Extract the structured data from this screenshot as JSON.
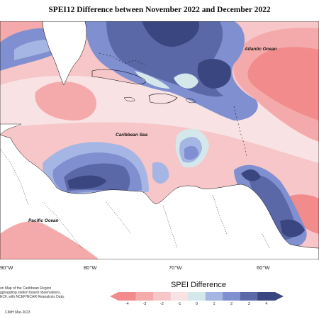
{
  "title": "SPEI12 Difference between November 2022 and December 2022",
  "labels": {
    "atlantic": "Atlantic Ocean",
    "caribbean": "Caribbean Sea",
    "pacific": "Pacific Ocean"
  },
  "longitudes": [
    "90°W",
    "80°W",
    "70°W",
    "60°W"
  ],
  "credit": [
    "on Map of the Caribbean Region",
    "ggregating station based observations,",
    "ECF, with NCEP/NCAR Reanalysis Data."
  ],
  "date": "CIMH Mar-2023",
  "legend": {
    "title": "SPEI Difference",
    "ticks": [
      "-4",
      "-3",
      "-2",
      "-1",
      "0",
      "1",
      "2",
      "3",
      "4"
    ],
    "colors": [
      "#f28c8c",
      "#f4aaaa",
      "#f6c6c8",
      "#f9e2e4",
      "#d4e8ec",
      "#a6b6e4",
      "#7f8fd0",
      "#5a68a8",
      "#3a4680"
    ]
  }
}
